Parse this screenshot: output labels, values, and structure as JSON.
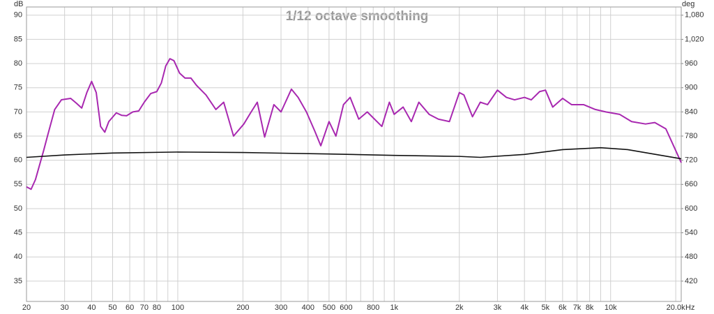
{
  "chart_data": {
    "type": "line",
    "title": "1/12 octave smoothing",
    "y_label": "dB",
    "y2_label": "deg",
    "x_label": "Hz",
    "x_log": true,
    "grid": true,
    "xlim": [
      20,
      21200
    ],
    "ylim": [
      30.8,
      91.7
    ],
    "y2lim": [
      369.6,
      1100.4
    ],
    "yticks": [
      35,
      40,
      45,
      50,
      55,
      60,
      65,
      70,
      75,
      80,
      85,
      90
    ],
    "y2ticks": [
      420,
      480,
      540,
      600,
      660,
      720,
      780,
      840,
      900,
      960,
      {
        "value": 1020,
        "label": "1,020"
      },
      {
        "value": 1080,
        "label": "1,080"
      }
    ],
    "xticks": [
      20,
      30,
      40,
      50,
      60,
      70,
      80,
      100,
      200,
      300,
      400,
      500,
      600,
      800,
      {
        "value": 1000,
        "label": "1k"
      },
      {
        "value": 2000,
        "label": "2k"
      },
      {
        "value": 3000,
        "label": "3k"
      },
      {
        "value": 4000,
        "label": "4k"
      },
      {
        "value": 5000,
        "label": "5k"
      },
      {
        "value": 6000,
        "label": "6k"
      },
      {
        "value": 7000,
        "label": "7k"
      },
      {
        "value": 8000,
        "label": "8k"
      },
      {
        "value": 10000,
        "label": "10k"
      },
      {
        "value": 20000,
        "label": "20.0k"
      }
    ],
    "x_minor_grid": [
      90,
      700,
      900,
      9000
    ],
    "series": [
      {
        "color": "#a828b0",
        "x": [
          20,
          21,
          22,
          24,
          25,
          27,
          29,
          32,
          34,
          36,
          38,
          40,
          42,
          44,
          46,
          48,
          52,
          55,
          58,
          62,
          66,
          70,
          75,
          80,
          84,
          88,
          92,
          96,
          102,
          108,
          115,
          122,
          135,
          150,
          163,
          181,
          202,
          217,
          233,
          252,
          278,
          300,
          335,
          360,
          393,
          430,
          458,
          500,
          538,
          583,
          626,
          686,
          751,
          877,
          950,
          1000,
          1100,
          1200,
          1300,
          1450,
          1600,
          1800,
          2000,
          2100,
          2300,
          2500,
          2700,
          3000,
          3300,
          3600,
          4000,
          4300,
          4700,
          5000,
          5400,
          6000,
          6600,
          7500,
          8500,
          9500,
          11000,
          12500,
          14500,
          16000,
          18000,
          20000,
          21200
        ],
        "values": [
          54.5,
          54,
          56,
          62,
          65,
          70.5,
          72.5,
          72.8,
          71.8,
          70.8,
          74,
          76.3,
          74,
          67,
          65.8,
          68,
          69.8,
          69.3,
          69.2,
          70,
          70.2,
          72,
          73.8,
          74.2,
          76,
          79.5,
          81,
          80.6,
          78,
          77,
          77,
          75.5,
          73.5,
          70.5,
          72,
          65,
          67.5,
          69.8,
          72,
          64.8,
          71.5,
          70,
          74.7,
          73,
          70,
          66,
          63,
          68,
          65,
          71.5,
          73,
          68.5,
          70,
          67,
          72,
          69.5,
          71,
          68,
          72,
          69.5,
          68.5,
          68,
          74,
          73.5,
          69,
          72,
          71.5,
          74.5,
          73,
          72.5,
          73,
          72.5,
          74.2,
          74.5,
          71,
          72.8,
          71.5,
          71.5,
          70.5,
          70,
          69.5,
          68,
          67.5,
          67.8,
          66.5,
          62,
          59.5
        ]
      },
      {
        "color": "#111111",
        "x": [
          20,
          30,
          50,
          100,
          200,
          500,
          1000,
          2000,
          2500,
          4000,
          6000,
          9000,
          12000,
          21200
        ],
        "values": [
          60.6,
          61.1,
          61.5,
          61.7,
          61.6,
          61.3,
          61.0,
          60.8,
          60.6,
          61.2,
          62.2,
          62.6,
          62.2,
          60.3
        ]
      }
    ]
  }
}
